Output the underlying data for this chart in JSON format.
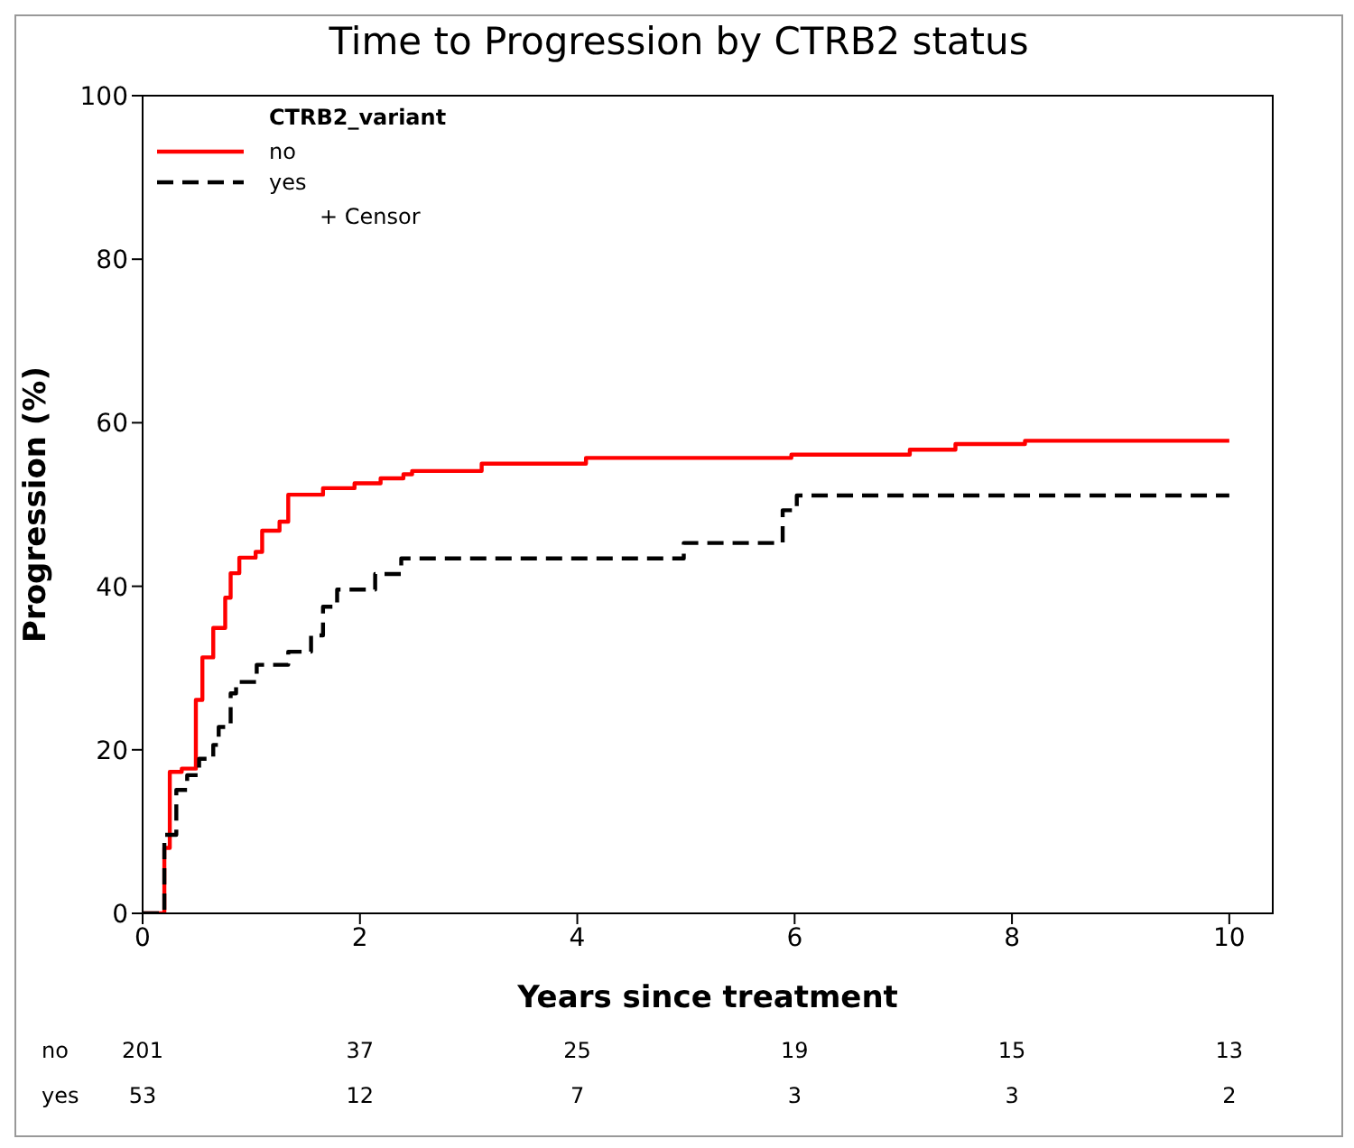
{
  "chart_data": {
    "type": "step",
    "title": "Time to Progression by CTRB2 status",
    "xlabel": "Years since treatment",
    "ylabel": "Progression (%)",
    "legend_title": "CTRB2_variant",
    "legend": "top left",
    "marker": "none",
    "xlim": [
      0,
      10.4
    ],
    "xticks": [
      0,
      2,
      4,
      6,
      8,
      10
    ],
    "ylim": [
      0,
      100
    ],
    "yticks": [
      0,
      20,
      40,
      60,
      80,
      100
    ],
    "series": [
      {
        "name": "no",
        "color": "#ff0000",
        "line_style": "solid",
        "x": [
          0,
          0.13,
          0.2,
          0.25,
          0.36,
          0.49,
          0.55,
          0.65,
          0.76,
          0.81,
          0.89,
          1.04,
          1.1,
          1.26,
          1.34,
          1.66,
          1.95,
          2.19,
          2.4,
          2.48,
          3.12,
          4.08,
          5.97,
          7.06,
          7.48,
          8.12,
          10
        ],
        "values": [
          0,
          0,
          8,
          17.3,
          17.7,
          26.1,
          31.3,
          34.9,
          38.6,
          41.6,
          43.5,
          44.2,
          46.8,
          47.9,
          51.2,
          52,
          52.6,
          53.2,
          53.7,
          54.1,
          55,
          55.7,
          56.1,
          56.7,
          57.4,
          57.8,
          57.8
        ]
      },
      {
        "name": "yes",
        "color": "#000000",
        "line_style": "dashed",
        "x": [
          0,
          0.15,
          0.2,
          0.31,
          0.41,
          0.52,
          0.65,
          0.7,
          0.81,
          0.86,
          1.05,
          1.34,
          1.55,
          1.66,
          1.79,
          2.14,
          2.38,
          4.98,
          5.89,
          6.02,
          10
        ],
        "values": [
          0,
          0,
          9.6,
          15.1,
          16.9,
          18.9,
          20.6,
          22.8,
          26.9,
          28.3,
          30.4,
          32,
          34,
          37.5,
          39.6,
          41.5,
          43.4,
          45.3,
          49.3,
          51.1,
          51.1
        ]
      }
    ],
    "annotations": [
      "+ Censor",
      "no",
      "201",
      "37",
      "25",
      "19",
      "15",
      "13",
      "yes",
      "53",
      "12",
      "7",
      "3",
      "3",
      "2"
    ]
  }
}
